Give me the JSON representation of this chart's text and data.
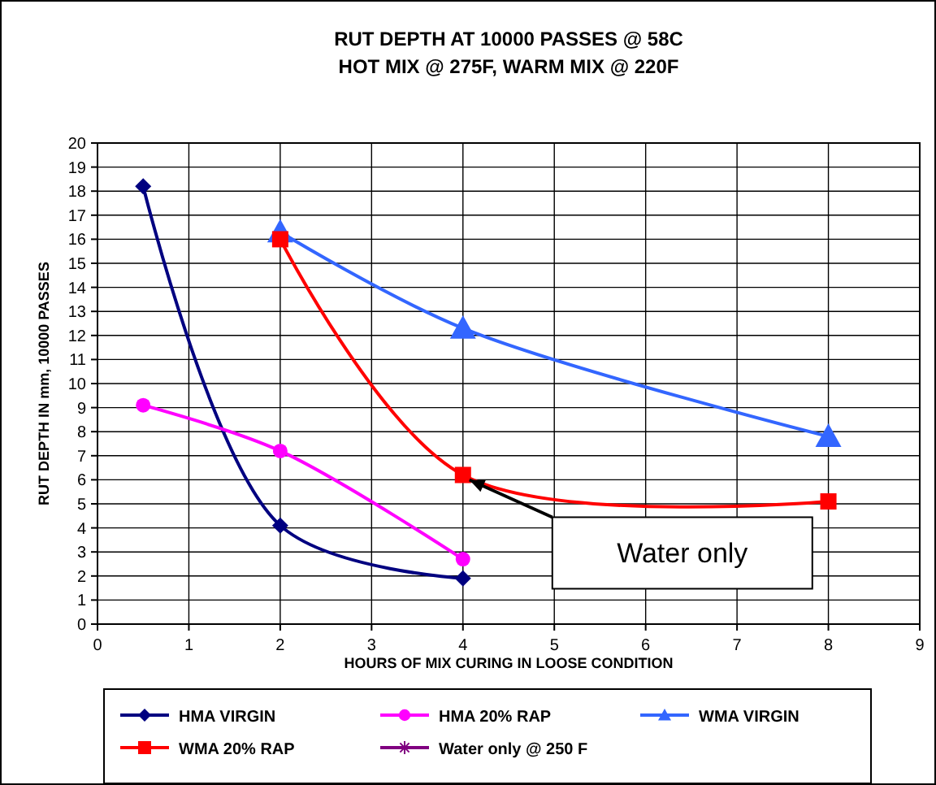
{
  "chart_data": {
    "type": "line",
    "title": "RUT DEPTH AT 10000 PASSES @ 58C",
    "subtitle": "HOT MIX @ 275F, WARM MIX @ 220F",
    "xlabel": "HOURS OF MIX CURING IN LOOSE CONDITION",
    "ylabel": "RUT DEPTH IN mm, 10000 PASSES",
    "xlim": [
      0,
      9
    ],
    "xticks": [
      0,
      1,
      2,
      3,
      4,
      5,
      6,
      7,
      8,
      9
    ],
    "ylim": [
      0,
      20
    ],
    "yticks": [
      0,
      1,
      2,
      3,
      4,
      5,
      6,
      7,
      8,
      9,
      10,
      11,
      12,
      13,
      14,
      15,
      16,
      17,
      18,
      19,
      20
    ],
    "grid": true,
    "legend": "bottom",
    "series": [
      {
        "name": "HMA VIRGIN",
        "color": "#000080",
        "marker": "diamond",
        "x": [
          0.5,
          2,
          4
        ],
        "values": [
          18.2,
          4.1,
          1.9
        ]
      },
      {
        "name": "HMA 20% RAP",
        "color": "#ff00ff",
        "marker": "circle",
        "x": [
          0.5,
          2,
          4
        ],
        "values": [
          9.1,
          7.2,
          2.7
        ]
      },
      {
        "name": "WMA VIRGIN",
        "color": "#3366ff",
        "marker": "triangle",
        "x": [
          2,
          4,
          8
        ],
        "values": [
          16.3,
          12.3,
          7.8
        ]
      },
      {
        "name": "WMA 20% RAP",
        "color": "#ff0000",
        "marker": "square",
        "x": [
          2,
          4,
          8
        ],
        "values": [
          16,
          6.2,
          5.1
        ]
      },
      {
        "name": "Water only @ 250 F",
        "color": "#800080",
        "marker": "star"
      }
    ],
    "annotations": [
      "Water only"
    ]
  }
}
